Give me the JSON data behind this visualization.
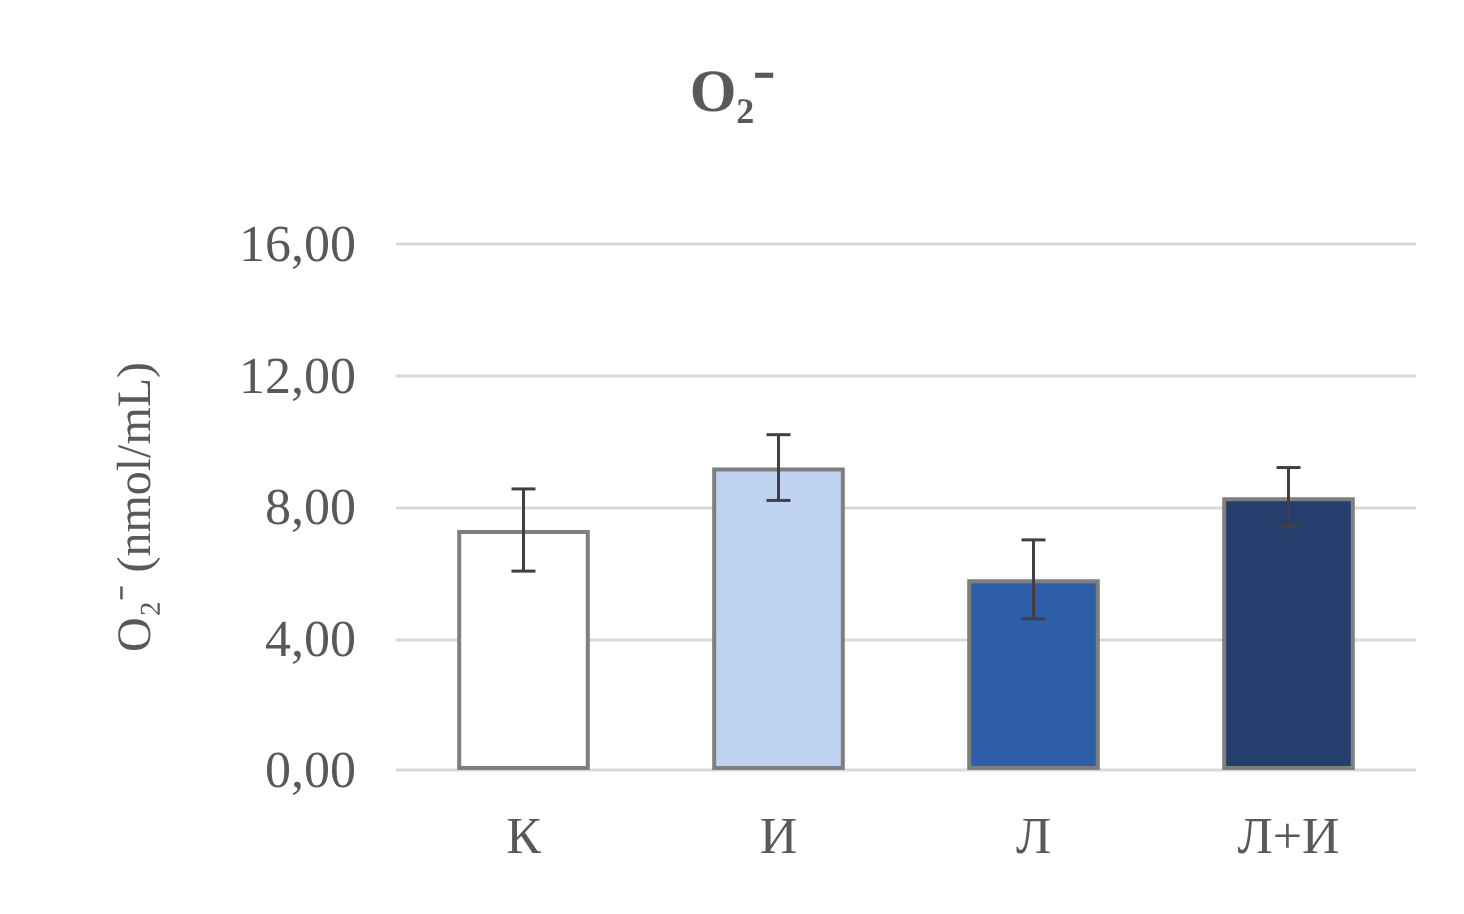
{
  "chart_data": {
    "type": "bar",
    "title": "O₂⁻",
    "ylabel": "O₂⁻ (nmol/mL)",
    "categories": [
      "К",
      "И",
      "Л",
      "Л+И"
    ],
    "values": [
      7.3,
      9.2,
      5.8,
      8.3
    ],
    "colors": [
      "#ffffff",
      "#c0d4f2",
      "#2f5ea8",
      "#243f6e"
    ],
    "errors": [
      1.25,
      1.0,
      1.2,
      0.9
    ],
    "ylim": [
      0,
      16
    ],
    "yticks": [
      {
        "value": 0,
        "label": "0,00"
      },
      {
        "value": 4,
        "label": "4,00"
      },
      {
        "value": 8,
        "label": "8,00"
      },
      {
        "value": 12,
        "label": "12,00"
      },
      {
        "value": 16,
        "label": "16,00"
      }
    ],
    "grid": "y"
  }
}
